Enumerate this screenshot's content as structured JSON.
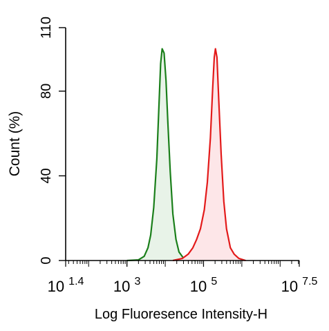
{
  "chart_data": {
    "type": "area",
    "title": "",
    "xlabel": "Log Fluoresence Intensity-H",
    "ylabel": "Count  (%)",
    "xscale": "log",
    "xlim_log10": [
      1.4,
      7.5
    ],
    "ylim": [
      0,
      110
    ],
    "x_ticks": [
      {
        "base": "10",
        "exp": "1.4",
        "value_log10": 1.4
      },
      {
        "base": "10",
        "exp": "3",
        "value_log10": 3
      },
      {
        "base": "10",
        "exp": "5",
        "value_log10": 5
      },
      {
        "base": "10",
        "exp": "7.5",
        "value_log10": 7.5
      }
    ],
    "y_ticks": [
      "0",
      "40",
      "80",
      "110"
    ],
    "y_tick_values": [
      0,
      40,
      80,
      110
    ],
    "grid": false,
    "legend": "none",
    "series": [
      {
        "color": "#1a7f1a",
        "fill": "#e8f3e8",
        "points_log10x": [
          [
            3.0,
            0
          ],
          [
            3.3,
            0.3
          ],
          [
            3.45,
            2
          ],
          [
            3.55,
            6
          ],
          [
            3.62,
            12
          ],
          [
            3.7,
            25
          ],
          [
            3.78,
            48
          ],
          [
            3.84,
            75
          ],
          [
            3.88,
            93
          ],
          [
            3.92,
            100
          ],
          [
            3.97,
            98
          ],
          [
            4.02,
            85
          ],
          [
            4.07,
            65
          ],
          [
            4.13,
            42
          ],
          [
            4.2,
            22
          ],
          [
            4.28,
            10
          ],
          [
            4.36,
            4
          ],
          [
            4.46,
            1.5
          ],
          [
            4.6,
            0.5
          ],
          [
            4.8,
            0
          ]
        ]
      },
      {
        "color": "#e31a1a",
        "fill": "#fde6e8",
        "points_log10x": [
          [
            4.2,
            0
          ],
          [
            4.45,
            1
          ],
          [
            4.6,
            3
          ],
          [
            4.72,
            6
          ],
          [
            4.82,
            10
          ],
          [
            4.92,
            15
          ],
          [
            5.02,
            24
          ],
          [
            5.1,
            37
          ],
          [
            5.18,
            58
          ],
          [
            5.24,
            82
          ],
          [
            5.28,
            96
          ],
          [
            5.31,
            100
          ],
          [
            5.35,
            96
          ],
          [
            5.4,
            75
          ],
          [
            5.46,
            50
          ],
          [
            5.53,
            28
          ],
          [
            5.6,
            15
          ],
          [
            5.7,
            6
          ],
          [
            5.8,
            3
          ],
          [
            5.92,
            1
          ],
          [
            6.1,
            0
          ]
        ]
      }
    ]
  }
}
